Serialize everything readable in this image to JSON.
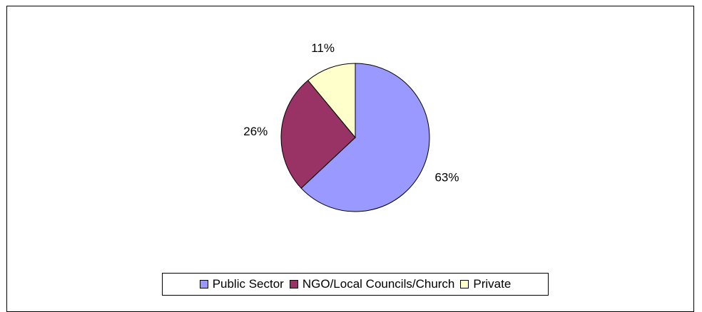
{
  "chart_data": {
    "type": "pie",
    "title": "",
    "slices": [
      {
        "label": "Public Sector",
        "value": 63,
        "display": "63%",
        "color": "#9999ff"
      },
      {
        "label": "NGO/Local Councils/Church",
        "value": 26,
        "display": "26%",
        "color": "#993366"
      },
      {
        "label": "Private",
        "value": 11,
        "display": "11%",
        "color": "#ffffcc"
      }
    ],
    "legend_position": "bottom"
  }
}
